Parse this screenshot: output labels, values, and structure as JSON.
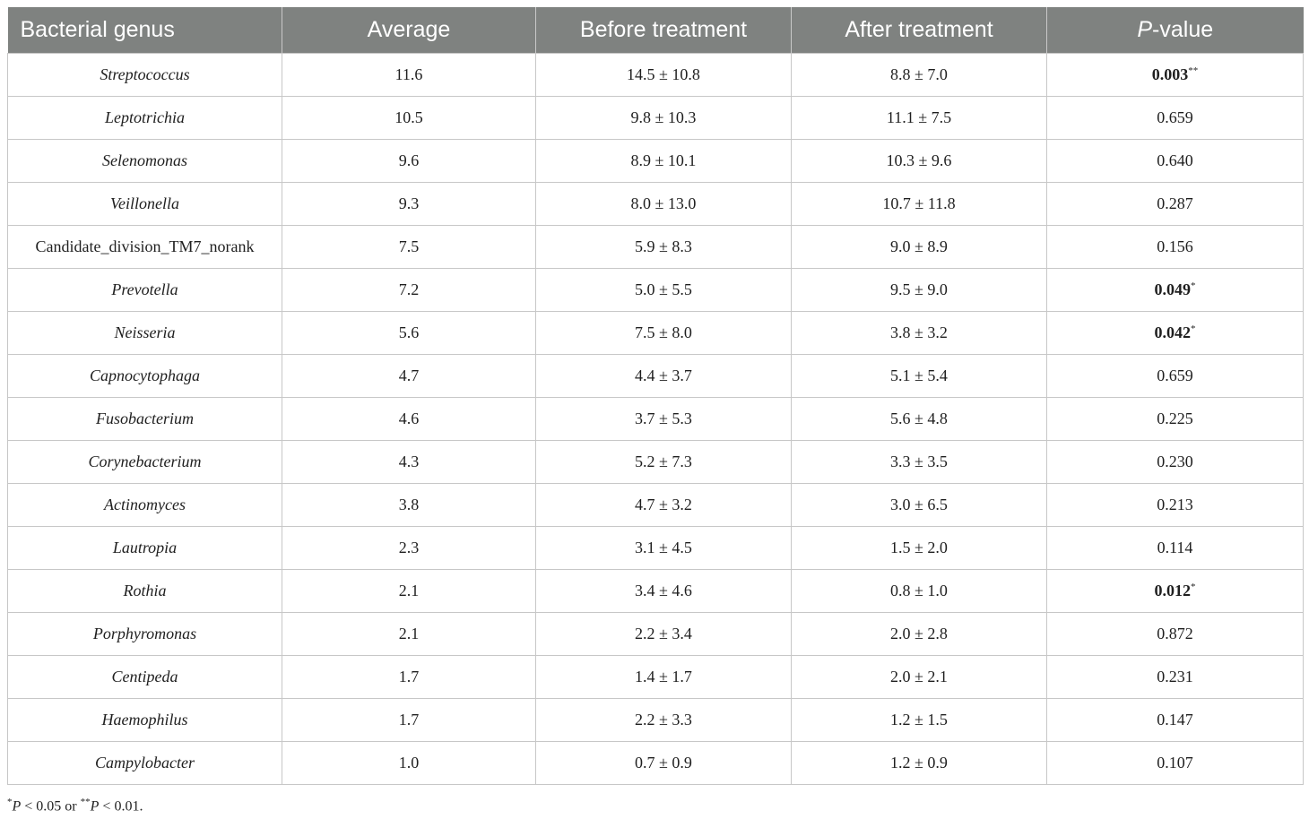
{
  "table": {
    "headers": [
      {
        "text": "Bacterial genus"
      },
      {
        "text": "Average"
      },
      {
        "text": "Before treatment"
      },
      {
        "text": "After treatment"
      },
      {
        "text_italic": "P",
        "text": "-value"
      }
    ],
    "rows": [
      {
        "genus": "Streptococcus",
        "italic": true,
        "average": "11.6",
        "before": "14.5 ± 10.8",
        "after": "8.8 ± 7.0",
        "p": "0.003",
        "p_mark": "**",
        "significant": true
      },
      {
        "genus": "Leptotrichia",
        "italic": true,
        "average": "10.5",
        "before": "9.8 ± 10.3",
        "after": "11.1 ± 7.5",
        "p": "0.659",
        "p_mark": "",
        "significant": false
      },
      {
        "genus": "Selenomonas",
        "italic": true,
        "average": "9.6",
        "before": "8.9 ± 10.1",
        "after": "10.3 ± 9.6",
        "p": "0.640",
        "p_mark": "",
        "significant": false
      },
      {
        "genus": "Veillonella",
        "italic": true,
        "average": "9.3",
        "before": "8.0 ± 13.0",
        "after": "10.7 ± 11.8",
        "p": "0.287",
        "p_mark": "",
        "significant": false
      },
      {
        "genus": "Candidate_division_TM7_norank",
        "italic": false,
        "average": "7.5",
        "before": "5.9 ± 8.3",
        "after": "9.0 ± 8.9",
        "p": "0.156",
        "p_mark": "",
        "significant": false
      },
      {
        "genus": "Prevotella",
        "italic": true,
        "average": "7.2",
        "before": "5.0 ± 5.5",
        "after": "9.5 ± 9.0",
        "p": "0.049",
        "p_mark": "*",
        "significant": true
      },
      {
        "genus": "Neisseria",
        "italic": true,
        "average": "5.6",
        "before": "7.5 ± 8.0",
        "after": "3.8 ± 3.2",
        "p": "0.042",
        "p_mark": "*",
        "significant": true
      },
      {
        "genus": "Capnocytophaga",
        "italic": true,
        "average": "4.7",
        "before": "4.4 ± 3.7",
        "after": "5.1 ± 5.4",
        "p": "0.659",
        "p_mark": "",
        "significant": false
      },
      {
        "genus": "Fusobacterium",
        "italic": true,
        "average": "4.6",
        "before": "3.7 ± 5.3",
        "after": "5.6 ± 4.8",
        "p": "0.225",
        "p_mark": "",
        "significant": false
      },
      {
        "genus": "Corynebacterium",
        "italic": true,
        "average": "4.3",
        "before": "5.2 ± 7.3",
        "after": "3.3 ± 3.5",
        "p": "0.230",
        "p_mark": "",
        "significant": false
      },
      {
        "genus": "Actinomyces",
        "italic": true,
        "average": "3.8",
        "before": "4.7 ± 3.2",
        "after": "3.0 ± 6.5",
        "p": "0.213",
        "p_mark": "",
        "significant": false
      },
      {
        "genus": "Lautropia",
        "italic": true,
        "average": "2.3",
        "before": "3.1 ± 4.5",
        "after": "1.5 ± 2.0",
        "p": "0.114",
        "p_mark": "",
        "significant": false
      },
      {
        "genus": "Rothia",
        "italic": true,
        "average": "2.1",
        "before": "3.4 ± 4.6",
        "after": "0.8 ± 1.0",
        "p": "0.012",
        "p_mark": "*",
        "significant": true
      },
      {
        "genus": "Porphyromonas",
        "italic": true,
        "average": "2.1",
        "before": "2.2 ± 3.4",
        "after": "2.0 ± 2.8",
        "p": "0.872",
        "p_mark": "",
        "significant": false
      },
      {
        "genus": "Centipeda",
        "italic": true,
        "average": "1.7",
        "before": "1.4 ± 1.7",
        "after": "2.0 ± 2.1",
        "p": "0.231",
        "p_mark": "",
        "significant": false
      },
      {
        "genus": "Haemophilus",
        "italic": true,
        "average": "1.7",
        "before": "2.2 ± 3.3",
        "after": "1.2 ± 1.5",
        "p": "0.147",
        "p_mark": "",
        "significant": false
      },
      {
        "genus": "Campylobacter",
        "italic": true,
        "average": "1.0",
        "before": "0.7 ± 0.9",
        "after": "1.2 ± 0.9",
        "p": "0.107",
        "p_mark": "",
        "significant": false
      }
    ]
  },
  "footnote": {
    "mark1": "*",
    "p1_italic": "P",
    "text1": " < 0.05 or ",
    "mark2": "**",
    "p2_italic": "P",
    "text2": " < 0.01."
  },
  "colors": {
    "header_bg": "#7f8280",
    "header_text": "#ffffff",
    "grid": "#c7c7c7"
  }
}
